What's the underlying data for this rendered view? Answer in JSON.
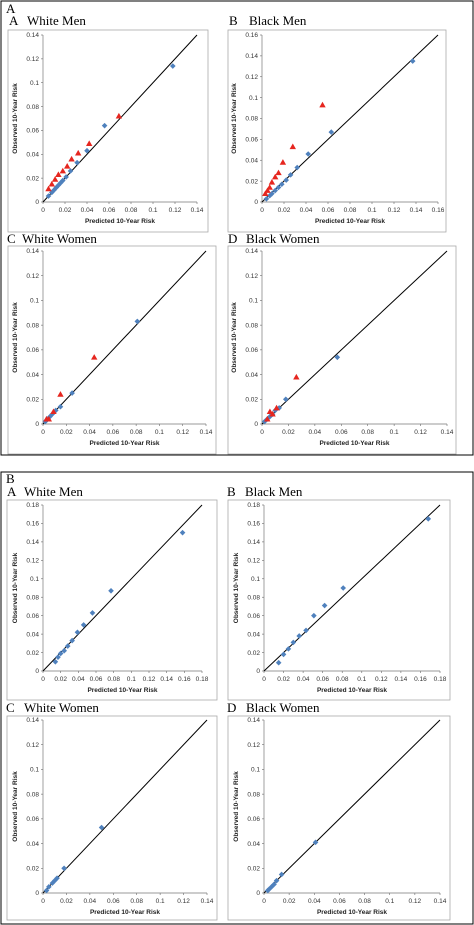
{
  "chart_data": [
    {
      "section": "A",
      "letter": "A",
      "title": "White Men",
      "type": "scatter",
      "xlabel": "Predicted 10-Year Risk",
      "ylabel": "Observed 10-Year Risk",
      "xlim": [
        0,
        0.14
      ],
      "ylim": [
        0,
        0.14
      ],
      "xticks": [
        "0",
        "0.02",
        "0.04",
        "0.06",
        "0.08",
        "0.1",
        "0.12",
        "0.14"
      ],
      "yticks": [
        "0",
        "0.02",
        "0.04",
        "0.06",
        "0.08",
        "0.1",
        "0.12",
        "0.14"
      ],
      "reference_line": "y = x",
      "series": [
        {
          "marker": "diamond",
          "color": "#4f81bd",
          "x": [
            0.005,
            0.008,
            0.01,
            0.012,
            0.014,
            0.016,
            0.018,
            0.021,
            0.025,
            0.031,
            0.04,
            0.056,
            0.118
          ],
          "y": [
            0.005,
            0.008,
            0.01,
            0.012,
            0.014,
            0.016,
            0.018,
            0.021,
            0.026,
            0.033,
            0.043,
            0.064,
            0.114
          ]
        },
        {
          "marker": "triangle",
          "color": "#e6261f",
          "x": [
            0.005,
            0.008,
            0.011,
            0.014,
            0.018,
            0.022,
            0.026,
            0.032,
            0.042,
            0.069
          ],
          "y": [
            0.011,
            0.015,
            0.019,
            0.023,
            0.026,
            0.03,
            0.036,
            0.041,
            0.049,
            0.072
          ]
        }
      ]
    },
    {
      "section": "A",
      "letter": "B",
      "title": "Black Men",
      "type": "scatter",
      "xlabel": "Predicted 10-Year Risk",
      "ylabel": "Observed 10-Year Risk",
      "xlim": [
        0,
        0.16
      ],
      "ylim": [
        0,
        0.16
      ],
      "xticks": [
        "0",
        "0.02",
        "0.04",
        "0.06",
        "0.08",
        "0.1",
        "0.12",
        "0.14",
        "0.16"
      ],
      "yticks": [
        "0",
        "0.02",
        "0.04",
        "0.06",
        "0.08",
        "0.1",
        "0.12",
        "0.14",
        "0.16"
      ],
      "reference_line": "y = x",
      "series": [
        {
          "marker": "diamond",
          "color": "#4f81bd",
          "x": [
            0.004,
            0.007,
            0.009,
            0.012,
            0.015,
            0.018,
            0.022,
            0.026,
            0.032,
            0.042,
            0.063,
            0.137
          ],
          "y": [
            0.003,
            0.006,
            0.008,
            0.011,
            0.014,
            0.017,
            0.021,
            0.026,
            0.033,
            0.046,
            0.067,
            0.135
          ]
        },
        {
          "marker": "triangle",
          "color": "#e6261f",
          "x": [
            0.003,
            0.005,
            0.007,
            0.009,
            0.012,
            0.015,
            0.019,
            0.028,
            0.055
          ],
          "y": [
            0.008,
            0.011,
            0.014,
            0.019,
            0.024,
            0.028,
            0.038,
            0.053,
            0.093
          ]
        }
      ]
    },
    {
      "section": "A",
      "letter": "C",
      "title": "White Women",
      "type": "scatter",
      "xlabel": "Predicted 10-Year Risk",
      "ylabel": "Observed 10-Year Risk",
      "xlim": [
        0,
        0.14
      ],
      "ylim": [
        0,
        0.14
      ],
      "xticks": [
        "0",
        "0.02",
        "0.04",
        "0.06",
        "0.08",
        "0.1",
        "0.12",
        "0.14"
      ],
      "yticks": [
        "0",
        "0.02",
        "0.04",
        "0.06",
        "0.08",
        "0.1",
        "0.12",
        "0.14"
      ],
      "reference_line": "y = x",
      "series": [
        {
          "marker": "diamond",
          "color": "#4f81bd",
          "x": [
            0.002,
            0.003,
            0.004,
            0.006,
            0.008,
            0.011,
            0.015,
            0.025,
            0.081
          ],
          "y": [
            0.002,
            0.003,
            0.004,
            0.006,
            0.008,
            0.011,
            0.014,
            0.025,
            0.083
          ]
        },
        {
          "marker": "triangle",
          "color": "#e6261f",
          "x": [
            0.003,
            0.005,
            0.009,
            0.015,
            0.044
          ],
          "y": [
            0.004,
            0.004,
            0.01,
            0.024,
            0.054
          ]
        }
      ]
    },
    {
      "section": "A",
      "letter": "D",
      "title": "Black Women",
      "type": "scatter",
      "xlabel": "Predicted 10-Year Risk",
      "ylabel": "Observed 10-Year Risk",
      "xlim": [
        0,
        0.14
      ],
      "ylim": [
        0,
        0.14
      ],
      "xticks": [
        "0",
        "0.02",
        "0.04",
        "0.06",
        "0.08",
        "0.1",
        "0.12",
        "0.14"
      ],
      "yticks": [
        "0",
        "0.02",
        "0.04",
        "0.06",
        "0.08",
        "0.1",
        "0.12",
        "0.14"
      ],
      "reference_line": "y = x",
      "series": [
        {
          "marker": "diamond",
          "color": "#4f81bd",
          "x": [
            0.002,
            0.004,
            0.006,
            0.008,
            0.01,
            0.013,
            0.018,
            0.057
          ],
          "y": [
            0.002,
            0.004,
            0.006,
            0.008,
            0.011,
            0.013,
            0.02,
            0.054
          ]
        },
        {
          "marker": "triangle",
          "color": "#e6261f",
          "x": [
            0.004,
            0.006,
            0.008,
            0.011,
            0.026
          ],
          "y": [
            0.004,
            0.01,
            0.008,
            0.013,
            0.038
          ]
        }
      ]
    },
    {
      "section": "B",
      "letter": "A",
      "title": "White Men",
      "type": "scatter",
      "xlabel": "Predicted 10-Year Risk",
      "ylabel": "Observed 10-Year Risk",
      "xlim": [
        0,
        0.18
      ],
      "ylim": [
        0,
        0.18
      ],
      "xticks": [
        "0",
        "0.02",
        "0.04",
        "0.06",
        "0.08",
        "0.1",
        "0.12",
        "0.14",
        "0.16",
        "0.18"
      ],
      "yticks": [
        "0",
        "0.02",
        "0.04",
        "0.06",
        "0.08",
        "0.1",
        "0.12",
        "0.14",
        "0.16",
        "0.18"
      ],
      "reference_line": "y = x",
      "series": [
        {
          "marker": "diamond",
          "color": "#4f81bd",
          "x": [
            0.014,
            0.017,
            0.02,
            0.024,
            0.028,
            0.033,
            0.039,
            0.046,
            0.056,
            0.077,
            0.158
          ],
          "y": [
            0.01,
            0.015,
            0.019,
            0.022,
            0.027,
            0.033,
            0.042,
            0.05,
            0.063,
            0.087,
            0.15
          ]
        }
      ]
    },
    {
      "section": "B",
      "letter": "B",
      "title": "Black Men",
      "type": "scatter",
      "xlabel": "Predicted 10-Year Risk",
      "ylabel": "Observed 10-Year Risk",
      "xlim": [
        0,
        0.18
      ],
      "ylim": [
        0,
        0.18
      ],
      "xticks": [
        "0",
        "0.02",
        "0.04",
        "0.06",
        "0.08",
        "0.1",
        "0.12",
        "0.14",
        "0.16",
        "0.18"
      ],
      "yticks": [
        "0",
        "0.02",
        "0.04",
        "0.06",
        "0.08",
        "0.1",
        "0.12",
        "0.14",
        "0.16",
        "0.18"
      ],
      "reference_line": "y = x",
      "series": [
        {
          "marker": "diamond",
          "color": "#4f81bd",
          "x": [
            0.015,
            0.02,
            0.025,
            0.03,
            0.036,
            0.043,
            0.051,
            0.062,
            0.081,
            0.168
          ],
          "y": [
            0.009,
            0.018,
            0.024,
            0.031,
            0.038,
            0.044,
            0.06,
            0.071,
            0.09,
            0.165
          ]
        }
      ]
    },
    {
      "section": "B",
      "letter": "C",
      "title": "White Women",
      "type": "scatter",
      "xlabel": "Predicted 10-Year Risk",
      "ylabel": "Observed 10-Year Risk",
      "xlim": [
        0,
        0.14
      ],
      "ylim": [
        0,
        0.14
      ],
      "xticks": [
        "0",
        "0.02",
        "0.04",
        "0.06",
        "0.08",
        "0.1",
        "0.12",
        "0.14"
      ],
      "yticks": [
        "0",
        "0.02",
        "0.04",
        "0.06",
        "0.08",
        "0.1",
        "0.12",
        "0.14"
      ],
      "reference_line": "y = x",
      "series": [
        {
          "marker": "diamond",
          "color": "#4f81bd",
          "x": [
            0.003,
            0.005,
            0.008,
            0.01,
            0.012,
            0.018,
            0.05
          ],
          "y": [
            0.002,
            0.005,
            0.008,
            0.01,
            0.012,
            0.02,
            0.053
          ]
        }
      ]
    },
    {
      "section": "B",
      "letter": "D",
      "title": "Black Women",
      "type": "scatter",
      "xlabel": "Predicted 10-Year Risk",
      "ylabel": "Observed 10-Year Risk",
      "xlim": [
        0,
        0.14
      ],
      "ylim": [
        0,
        0.14
      ],
      "xticks": [
        "0",
        "0.02",
        "0.04",
        "0.06",
        "0.08",
        "0.1",
        "0.12",
        "0.14"
      ],
      "yticks": [
        "0",
        "0.02",
        "0.04",
        "0.06",
        "0.08",
        "0.1",
        "0.12",
        "0.14"
      ],
      "reference_line": "y = x",
      "series": [
        {
          "marker": "diamond",
          "color": "#4f81bd",
          "x": [
            0.003,
            0.004,
            0.006,
            0.008,
            0.01,
            0.014,
            0.041
          ],
          "y": [
            0.002,
            0.003,
            0.005,
            0.007,
            0.01,
            0.015,
            0.041
          ]
        }
      ]
    }
  ]
}
